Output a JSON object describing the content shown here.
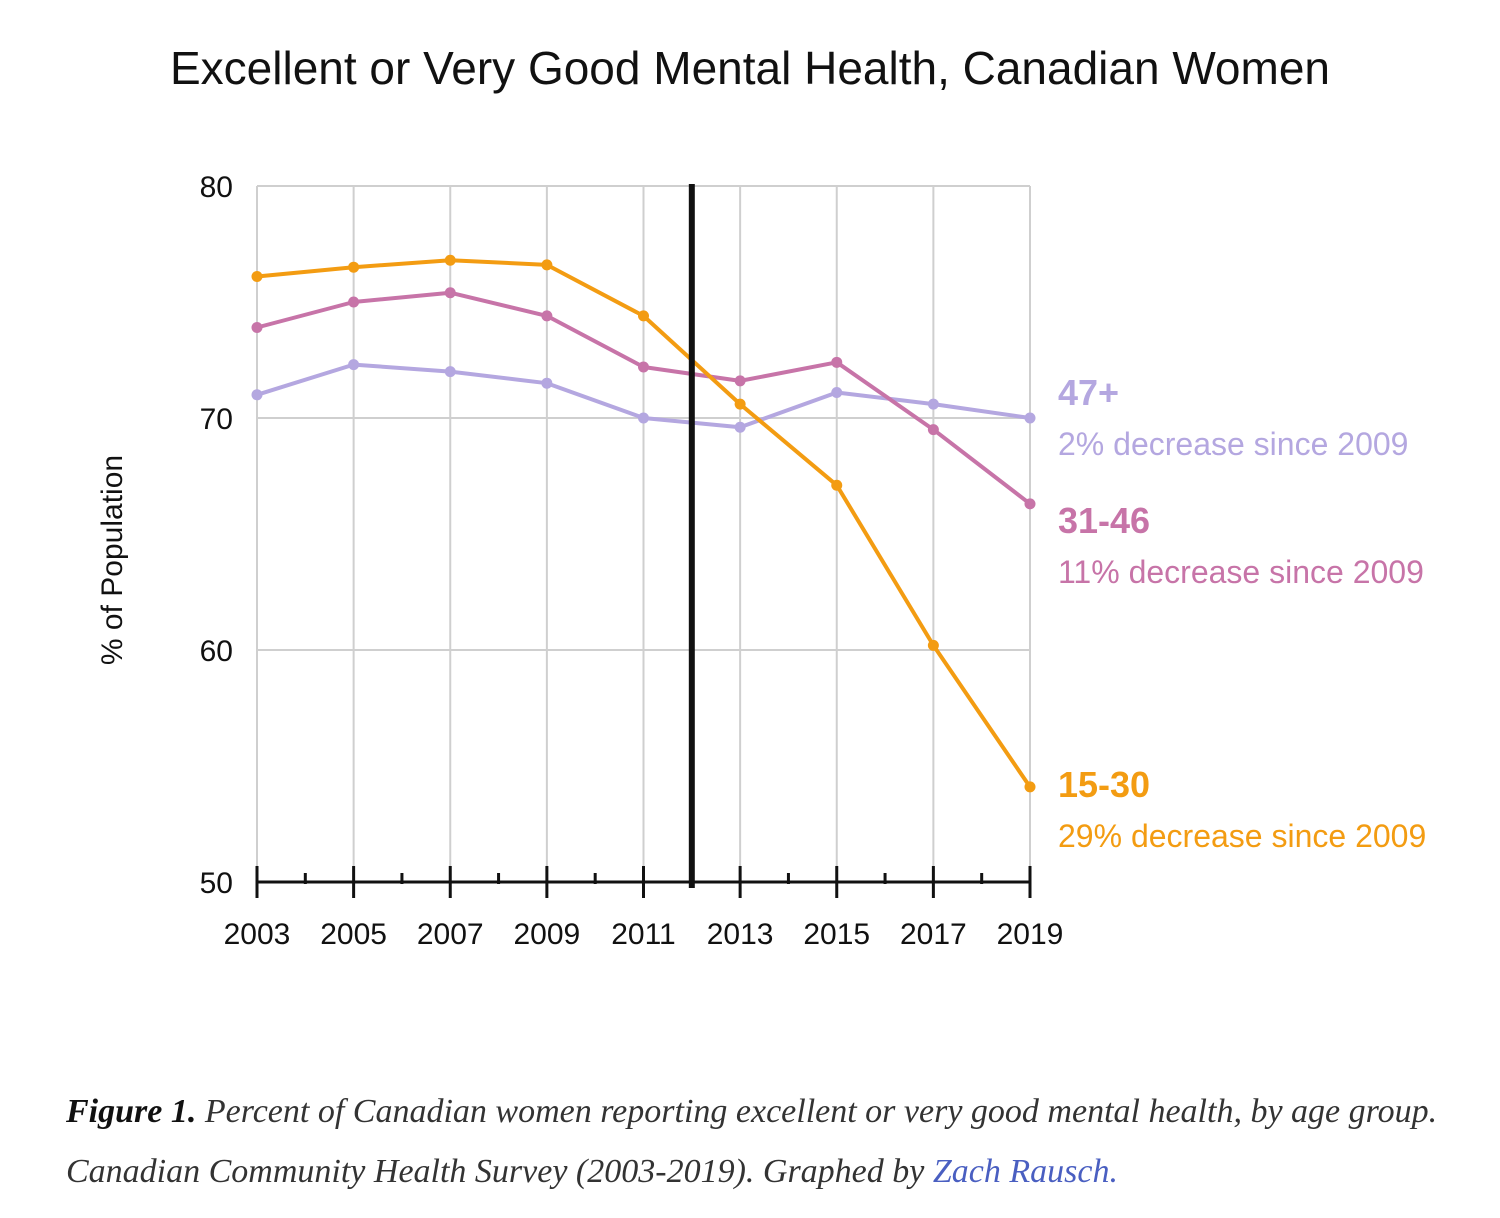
{
  "chart_data": {
    "type": "line",
    "title": "Excellent or Very Good Mental Health, Canadian Women",
    "ylabel": "% of Population",
    "xlabel": "",
    "ylim": [
      50,
      80
    ],
    "yticks": [
      "50",
      "60",
      "70",
      "80"
    ],
    "xlim": [
      2003,
      2019
    ],
    "xticks": [
      "2003",
      "2005",
      "2007",
      "2009",
      "2011",
      "2013",
      "2015",
      "2017",
      "2019"
    ],
    "grid": true,
    "marker_line_x": 2012,
    "x": [
      2003,
      2005,
      2007,
      2009,
      2011,
      2013,
      2015,
      2017,
      2019
    ],
    "series": [
      {
        "name": "47+",
        "note": "2% decrease since 2009",
        "color": "#b4a7e0",
        "values": [
          71.0,
          72.3,
          72.0,
          71.5,
          70.0,
          69.6,
          71.1,
          70.6,
          70.0
        ]
      },
      {
        "name": "31-46",
        "note": "11% decrease since 2009",
        "color": "#c774a8",
        "values": [
          73.9,
          75.0,
          75.4,
          74.4,
          72.2,
          71.6,
          72.4,
          69.5,
          66.3
        ]
      },
      {
        "name": "15-30",
        "note": "29% decrease since 2009",
        "color": "#f39c12",
        "values": [
          76.1,
          76.5,
          76.8,
          76.6,
          74.4,
          70.6,
          67.1,
          60.2,
          54.1
        ]
      }
    ]
  },
  "caption": {
    "label": "Figure 1.",
    "text": " Percent of Canadian women reporting excellent or very good mental health, by age group. Canadian Community Health Survey (2003-2019). Graphed by ",
    "link_text": "Zach Rausch."
  }
}
